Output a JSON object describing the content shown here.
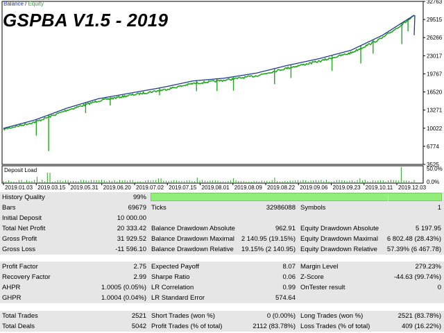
{
  "chart": {
    "title": "GSPBA V1.5 - 2019",
    "legend": {
      "balance": "Balance",
      "separator": " / ",
      "equity": "Equity"
    },
    "balance_color": "#1f3a93",
    "equity_color": "#22a81e",
    "deposit_load_label": "Deposit Load"
  },
  "chart_data": [
    {
      "type": "line",
      "title": "GSPBA V1.5 - 2019",
      "series": [
        {
          "name": "Balance",
          "x": [
            "2019.01.03",
            "2019.03.15",
            "2019.05.31",
            "2019.06.20",
            "2019.07.02",
            "2019.07.15",
            "2019.08.01",
            "2019.08.09",
            "2019.08.22",
            "2019.09.06",
            "2019.09.23",
            "2019.10.11",
            "2019.12.03",
            "2019.12.31"
          ],
          "values": [
            10000,
            11500,
            13600,
            15300,
            16300,
            17300,
            18500,
            19000,
            19900,
            21300,
            22500,
            24000,
            26700,
            30300
          ]
        },
        {
          "name": "Equity",
          "x": [
            "2019.01.03",
            "2019.03.15",
            "2019.05.31",
            "2019.06.20",
            "2019.07.02",
            "2019.07.15",
            "2019.08.01",
            "2019.08.09",
            "2019.08.22",
            "2019.09.06",
            "2019.09.23",
            "2019.10.11",
            "2019.12.03",
            "2019.12.31"
          ],
          "values": [
            10000,
            11300,
            13400,
            15100,
            16100,
            17000,
            18200,
            18800,
            19600,
            21000,
            22200,
            23700,
            26400,
            30300
          ]
        }
      ],
      "yticks": [
        "32763",
        "29515",
        "26266",
        "23017",
        "19767",
        "16520",
        "13271",
        "10022",
        "6774",
        "3525"
      ],
      "ylim": [
        3525,
        32763
      ]
    },
    {
      "type": "bar",
      "title": "Deposit Load",
      "yticks": [
        "50.0%",
        "0.0%"
      ],
      "ylim": [
        0,
        50
      ],
      "note": "mostly near 0%, spike near 2019.12.03"
    }
  ],
  "xaxis_labels": [
    "2019.01.03",
    "2019.03.15",
    "2019.05.31",
    "2019.06.20",
    "2019.07.02",
    "2019.07.15",
    "2019.08.01",
    "2019.08.09",
    "2019.08.22",
    "2019.09.06",
    "2019.09.23",
    "2019.10.11",
    "2019.12.03"
  ],
  "stats": {
    "history_quality": {
      "label": "History Quality",
      "value": "99%"
    },
    "bars": {
      "label": "Bars",
      "value": "69679"
    },
    "ticks": {
      "label": "Ticks",
      "value": "32986088"
    },
    "symbols": {
      "label": "Symbols",
      "value": "1"
    },
    "initial_deposit": {
      "label": "Initial Deposit",
      "value": "10 000.00"
    },
    "total_net_profit": {
      "label": "Total Net Profit",
      "value": "20 333.42"
    },
    "bal_dd_abs": {
      "label": "Balance Drawdown Absolute",
      "value": "962.91"
    },
    "eq_dd_abs": {
      "label": "Equity Drawdown Absolute",
      "value": "5 197.95"
    },
    "gross_profit": {
      "label": "Gross Profit",
      "value": "31 929.52"
    },
    "bal_dd_max": {
      "label": "Balance Drawdown Maximal",
      "value": "2 140.95 (19.15%)"
    },
    "eq_dd_max": {
      "label": "Equity Drawdown Maximal",
      "value": "6 802.48 (28.43%)"
    },
    "gross_loss": {
      "label": "Gross Loss",
      "value": "-11 596.10"
    },
    "bal_dd_rel": {
      "label": "Balance Drawdown Relative",
      "value": "19.15% (2 140.95)"
    },
    "eq_dd_rel": {
      "label": "Equity Drawdown Relative",
      "value": "57.39% (6 467.78)"
    },
    "profit_factor": {
      "label": "Profit Factor",
      "value": "2.75"
    },
    "expected_payoff": {
      "label": "Expected Payoff",
      "value": "8.07"
    },
    "margin_level": {
      "label": "Margin Level",
      "value": "279.23%"
    },
    "recovery_factor": {
      "label": "Recovery Factor",
      "value": "2.99"
    },
    "sharpe_ratio": {
      "label": "Sharpe Ratio",
      "value": "0.06"
    },
    "z_score": {
      "label": "Z-Score",
      "value": "-44.63 (99.74%)"
    },
    "ahpr": {
      "label": "AHPR",
      "value": "1.0005 (0.05%)"
    },
    "lr_correlation": {
      "label": "LR Correlation",
      "value": "0.99"
    },
    "ontester": {
      "label": "OnTester result",
      "value": "0"
    },
    "ghpr": {
      "label": "GHPR",
      "value": "1.0004 (0.04%)"
    },
    "lr_std_error": {
      "label": "LR Standard Error",
      "value": "574.64"
    },
    "total_trades": {
      "label": "Total Trades",
      "value": "2521"
    },
    "short_trades": {
      "label": "Short Trades (won %)",
      "value": "0 (0.00%)"
    },
    "long_trades": {
      "label": "Long Trades (won %)",
      "value": "2521 (83.78%)"
    },
    "total_deals": {
      "label": "Total Deals",
      "value": "5042"
    },
    "profit_trades": {
      "label": "Profit Trades (% of total)",
      "value": "2112 (83.78%)"
    },
    "loss_trades": {
      "label": "Loss Trades (% of total)",
      "value": "409 (16.22%)"
    }
  }
}
